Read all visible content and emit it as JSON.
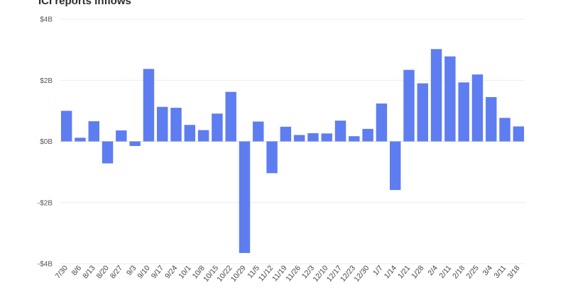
{
  "chart_data": {
    "type": "bar",
    "title": "ICI reports inflows",
    "xlabel": "",
    "ylabel": "",
    "ylim": [
      -4,
      4
    ],
    "y_unit": "billions USD",
    "yticks": [
      {
        "value": 4,
        "label": "$4B"
      },
      {
        "value": 2,
        "label": "$2B"
      },
      {
        "value": 0,
        "label": "$0B"
      },
      {
        "value": -2,
        "label": "-$2B"
      },
      {
        "value": -4,
        "label": "-$4B"
      }
    ],
    "grid": true,
    "bar_color": "#5e7df0",
    "categories": [
      "7/30",
      "8/6",
      "8/13",
      "8/20",
      "8/27",
      "9/3",
      "9/10",
      "9/17",
      "9/24",
      "10/1",
      "10/8",
      "10/15",
      "10/22",
      "10/29",
      "11/5",
      "11/12",
      "11/19",
      "11/26",
      "12/3",
      "12/10",
      "12/17",
      "12/23",
      "12/30",
      "1/7",
      "1/14",
      "1/21",
      "1/28",
      "2/4",
      "2/11",
      "2/18",
      "2/25",
      "3/4",
      "3/11",
      "3/18"
    ],
    "values": [
      1.0,
      0.12,
      0.66,
      -0.72,
      0.36,
      -0.15,
      2.37,
      1.13,
      1.1,
      0.54,
      0.37,
      0.91,
      1.62,
      -3.65,
      0.65,
      -1.04,
      0.48,
      0.21,
      0.27,
      0.26,
      0.68,
      0.17,
      0.41,
      1.24,
      -1.59,
      2.34,
      1.9,
      3.02,
      2.78,
      1.93,
      2.19,
      1.45,
      0.77,
      0.49
    ]
  }
}
